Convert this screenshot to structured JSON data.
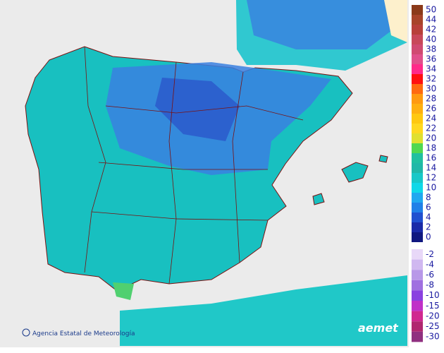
{
  "credit": "Agencia Estatal de Meteorología",
  "logo": "aemet",
  "legend": {
    "positive": {
      "labels": [
        50,
        44,
        42,
        40,
        38,
        36,
        34,
        32,
        30,
        28,
        26,
        24,
        22,
        20,
        18,
        16,
        14,
        12,
        10,
        8,
        6,
        4,
        2,
        0
      ],
      "colors": [
        "#8b3a1a",
        "#a8442a",
        "#b8403a",
        "#c8485a",
        "#d04a72",
        "#e0508c",
        "#ff2a8a",
        "#ff1010",
        "#ff6a10",
        "#ff9a10",
        "#ffb010",
        "#ffc810",
        "#ffd820",
        "#e0e030",
        "#50d850",
        "#20c0a0",
        "#20b8a8",
        "#18c8c8",
        "#10d8e8",
        "#20a8f0",
        "#2080e8",
        "#2050d0",
        "#1a2aa8",
        "#101880"
      ]
    },
    "negative": {
      "labels": [
        -2,
        -4,
        -6,
        -8,
        -10,
        -15,
        -20,
        -25,
        -30
      ],
      "colors": [
        "#e8d8f8",
        "#d0b8f0",
        "#b898e8",
        "#a070e0",
        "#8a40e0",
        "#c030c8",
        "#d02890",
        "#b02870",
        "#903080"
      ]
    }
  }
}
